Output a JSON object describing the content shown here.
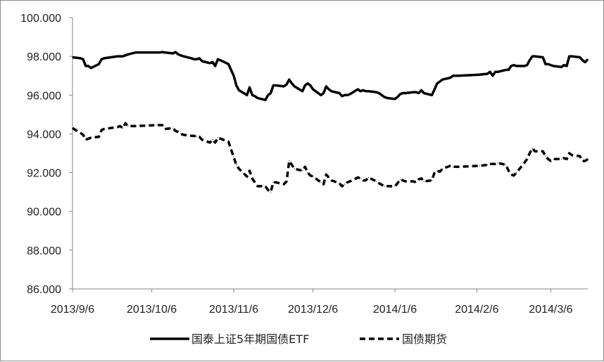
{
  "chart_data": {
    "type": "line",
    "title": "",
    "xlabel": "",
    "ylabel": "",
    "ylim": [
      86,
      100
    ],
    "grid": false,
    "legend_position": "bottom",
    "y_ticks": [
      "86.000",
      "88.000",
      "90.000",
      "92.000",
      "94.000",
      "96.000",
      "98.000",
      "100.000"
    ],
    "x_ticks": [
      "2013/9/6",
      "2013/10/6",
      "2013/11/6",
      "2013/12/6",
      "2014/1/6",
      "2014/2/6",
      "2014/3/6"
    ],
    "series": [
      {
        "name": "国泰上证5年期国债ETF",
        "style": "solid",
        "color": "#000000",
        "points": [
          [
            "2013-09-06",
            97.95
          ],
          [
            "2013-09-09",
            97.9
          ],
          [
            "2013-09-10",
            97.85
          ],
          [
            "2013-09-11",
            97.5
          ],
          [
            "2013-09-12",
            97.5
          ],
          [
            "2013-09-13",
            97.4
          ],
          [
            "2013-09-16",
            97.6
          ],
          [
            "2013-09-17",
            97.85
          ],
          [
            "2013-09-18",
            97.9
          ],
          [
            "2013-09-23",
            98.0
          ],
          [
            "2013-09-24",
            98.0
          ],
          [
            "2013-09-25",
            98.0
          ],
          [
            "2013-09-26",
            98.05
          ],
          [
            "2013-09-27",
            98.1
          ],
          [
            "2013-09-30",
            98.2
          ],
          [
            "2013-10-08",
            98.2
          ],
          [
            "2013-10-09",
            98.2
          ],
          [
            "2013-10-10",
            98.22
          ],
          [
            "2013-10-11",
            98.2
          ],
          [
            "2013-10-14",
            98.15
          ],
          [
            "2013-10-15",
            98.22
          ],
          [
            "2013-10-16",
            98.1
          ],
          [
            "2013-10-17",
            98.05
          ],
          [
            "2013-10-18",
            98.0
          ],
          [
            "2013-10-21",
            97.9
          ],
          [
            "2013-10-22",
            97.85
          ],
          [
            "2013-10-23",
            97.85
          ],
          [
            "2013-10-24",
            97.9
          ],
          [
            "2013-10-25",
            97.75
          ],
          [
            "2013-10-28",
            97.65
          ],
          [
            "2013-10-29",
            97.7
          ],
          [
            "2013-10-30",
            97.5
          ],
          [
            "2013-10-31",
            97.85
          ],
          [
            "2013-11-01",
            97.8
          ],
          [
            "2013-11-04",
            97.6
          ],
          [
            "2013-11-05",
            97.3
          ],
          [
            "2013-11-06",
            97.0
          ],
          [
            "2013-11-07",
            96.5
          ],
          [
            "2013-11-08",
            96.25
          ],
          [
            "2013-11-11",
            96.0
          ],
          [
            "2013-11-12",
            96.4
          ],
          [
            "2013-11-13",
            96.0
          ],
          [
            "2013-11-14",
            95.95
          ],
          [
            "2013-11-15",
            95.85
          ],
          [
            "2013-11-18",
            95.75
          ],
          [
            "2013-11-19",
            96.0
          ],
          [
            "2013-11-20",
            96.1
          ],
          [
            "2013-11-21",
            96.5
          ],
          [
            "2013-11-22",
            96.5
          ],
          [
            "2013-11-25",
            96.45
          ],
          [
            "2013-11-26",
            96.55
          ],
          [
            "2013-11-27",
            96.8
          ],
          [
            "2013-11-28",
            96.6
          ],
          [
            "2013-11-29",
            96.45
          ],
          [
            "2013-12-02",
            96.2
          ],
          [
            "2013-12-03",
            96.5
          ],
          [
            "2013-12-04",
            96.6
          ],
          [
            "2013-12-05",
            96.5
          ],
          [
            "2013-12-06",
            96.3
          ],
          [
            "2013-12-09",
            96.0
          ],
          [
            "2013-12-10",
            96.1
          ],
          [
            "2013-12-11",
            96.45
          ],
          [
            "2013-12-12",
            96.3
          ],
          [
            "2013-12-13",
            96.2
          ],
          [
            "2013-12-16",
            96.1
          ],
          [
            "2013-12-17",
            95.95
          ],
          [
            "2013-12-18",
            96.0
          ],
          [
            "2013-12-19",
            96.0
          ],
          [
            "2013-12-20",
            96.05
          ],
          [
            "2013-12-23",
            96.3
          ],
          [
            "2013-12-24",
            96.2
          ],
          [
            "2013-12-25",
            96.25
          ],
          [
            "2013-12-26",
            96.2
          ],
          [
            "2013-12-27",
            96.2
          ],
          [
            "2013-12-30",
            96.15
          ],
          [
            "2013-12-31",
            96.1
          ],
          [
            "2014-01-02",
            95.9
          ],
          [
            "2014-01-03",
            95.85
          ],
          [
            "2014-01-06",
            95.8
          ],
          [
            "2014-01-07",
            95.9
          ],
          [
            "2014-01-08",
            96.05
          ],
          [
            "2014-01-09",
            96.1
          ],
          [
            "2014-01-10",
            96.1
          ],
          [
            "2014-01-13",
            96.15
          ],
          [
            "2014-01-14",
            96.15
          ],
          [
            "2014-01-15",
            96.1
          ],
          [
            "2014-01-16",
            96.25
          ],
          [
            "2014-01-17",
            96.1
          ],
          [
            "2014-01-20",
            96.0
          ],
          [
            "2014-01-21",
            96.3
          ],
          [
            "2014-01-22",
            96.6
          ],
          [
            "2014-01-23",
            96.7
          ],
          [
            "2014-01-24",
            96.8
          ],
          [
            "2014-01-27",
            96.9
          ],
          [
            "2014-01-28",
            97.0
          ],
          [
            "2014-01-29",
            97.0
          ],
          [
            "2014-01-30",
            97.0
          ],
          [
            "2014-02-07",
            97.05
          ],
          [
            "2014-02-10",
            97.1
          ],
          [
            "2014-02-11",
            97.2
          ],
          [
            "2014-02-12",
            97.0
          ],
          [
            "2014-02-13",
            97.2
          ],
          [
            "2014-02-14",
            97.2
          ],
          [
            "2014-02-17",
            97.3
          ],
          [
            "2014-02-18",
            97.3
          ],
          [
            "2014-02-19",
            97.5
          ],
          [
            "2014-02-20",
            97.55
          ],
          [
            "2014-02-21",
            97.5
          ],
          [
            "2014-02-24",
            97.5
          ],
          [
            "2014-02-25",
            97.55
          ],
          [
            "2014-02-26",
            97.8
          ],
          [
            "2014-02-27",
            98.0
          ],
          [
            "2014-02-28",
            98.0
          ],
          [
            "2014-03-03",
            97.95
          ],
          [
            "2014-03-04",
            97.6
          ],
          [
            "2014-03-05",
            97.6
          ],
          [
            "2014-03-06",
            97.55
          ],
          [
            "2014-03-07",
            97.5
          ],
          [
            "2014-03-10",
            97.45
          ],
          [
            "2014-03-11",
            97.55
          ],
          [
            "2014-03-12",
            97.5
          ],
          [
            "2014-03-13",
            98.0
          ],
          [
            "2014-03-14",
            98.0
          ],
          [
            "2014-03-17",
            97.95
          ],
          [
            "2014-03-18",
            97.8
          ],
          [
            "2014-03-19",
            97.7
          ],
          [
            "2014-03-20",
            97.85
          ]
        ]
      },
      {
        "name": "国债期货",
        "style": "dashed",
        "color": "#000000",
        "points": [
          [
            "2013-09-06",
            94.3
          ],
          [
            "2013-09-09",
            94.05
          ],
          [
            "2013-09-10",
            93.95
          ],
          [
            "2013-09-11",
            93.7
          ],
          [
            "2013-09-12",
            93.75
          ],
          [
            "2013-09-13",
            93.8
          ],
          [
            "2013-09-16",
            93.85
          ],
          [
            "2013-09-17",
            94.2
          ],
          [
            "2013-09-18",
            94.25
          ],
          [
            "2013-09-23",
            94.35
          ],
          [
            "2013-09-24",
            94.4
          ],
          [
            "2013-09-25",
            94.3
          ],
          [
            "2013-09-26",
            94.55
          ],
          [
            "2013-09-27",
            94.4
          ],
          [
            "2013-09-30",
            94.4
          ],
          [
            "2013-10-08",
            94.45
          ],
          [
            "2013-10-09",
            94.45
          ],
          [
            "2013-10-10",
            94.45
          ],
          [
            "2013-10-11",
            94.25
          ],
          [
            "2013-10-14",
            94.3
          ],
          [
            "2013-10-15",
            94.15
          ],
          [
            "2013-10-16",
            94.1
          ],
          [
            "2013-10-17",
            94.0
          ],
          [
            "2013-10-18",
            93.95
          ],
          [
            "2013-10-21",
            93.9
          ],
          [
            "2013-10-22",
            93.9
          ],
          [
            "2013-10-23",
            93.85
          ],
          [
            "2013-10-24",
            93.85
          ],
          [
            "2013-10-25",
            93.7
          ],
          [
            "2013-10-28",
            93.55
          ],
          [
            "2013-10-29",
            93.7
          ],
          [
            "2013-10-30",
            93.55
          ],
          [
            "2013-10-31",
            93.8
          ],
          [
            "2013-11-01",
            93.75
          ],
          [
            "2013-11-04",
            93.6
          ],
          [
            "2013-11-05",
            93.2
          ],
          [
            "2013-11-06",
            92.8
          ],
          [
            "2013-11-07",
            92.4
          ],
          [
            "2013-11-08",
            92.2
          ],
          [
            "2013-11-11",
            91.8
          ],
          [
            "2013-11-12",
            92.1
          ],
          [
            "2013-11-13",
            91.7
          ],
          [
            "2013-11-14",
            91.5
          ],
          [
            "2013-11-15",
            91.3
          ],
          [
            "2013-11-18",
            91.3
          ],
          [
            "2013-11-19",
            91.1
          ],
          [
            "2013-11-20",
            91.0
          ],
          [
            "2013-11-21",
            91.5
          ],
          [
            "2013-11-22",
            91.5
          ],
          [
            "2013-11-25",
            91.4
          ],
          [
            "2013-11-26",
            91.55
          ],
          [
            "2013-11-27",
            92.6
          ],
          [
            "2013-11-28",
            92.4
          ],
          [
            "2013-11-29",
            92.2
          ],
          [
            "2013-12-02",
            92.1
          ],
          [
            "2013-12-03",
            92.3
          ],
          [
            "2013-12-04",
            92.0
          ],
          [
            "2013-12-05",
            91.85
          ],
          [
            "2013-12-06",
            91.8
          ],
          [
            "2013-12-09",
            91.5
          ],
          [
            "2013-12-10",
            91.4
          ],
          [
            "2013-12-11",
            91.9
          ],
          [
            "2013-12-12",
            91.75
          ],
          [
            "2013-12-13",
            91.6
          ],
          [
            "2013-12-16",
            91.45
          ],
          [
            "2013-12-17",
            91.3
          ],
          [
            "2013-12-18",
            91.4
          ],
          [
            "2013-12-19",
            91.5
          ],
          [
            "2013-12-20",
            91.55
          ],
          [
            "2013-12-23",
            91.75
          ],
          [
            "2013-12-24",
            91.7
          ],
          [
            "2013-12-25",
            91.6
          ],
          [
            "2013-12-26",
            91.6
          ],
          [
            "2013-12-27",
            91.75
          ],
          [
            "2013-12-30",
            91.55
          ],
          [
            "2013-12-31",
            91.45
          ],
          [
            "2014-01-02",
            91.3
          ],
          [
            "2014-01-03",
            91.3
          ],
          [
            "2014-01-06",
            91.3
          ],
          [
            "2014-01-07",
            91.45
          ],
          [
            "2014-01-08",
            91.65
          ],
          [
            "2014-01-09",
            91.6
          ],
          [
            "2014-01-10",
            91.55
          ],
          [
            "2014-01-13",
            91.55
          ],
          [
            "2014-01-14",
            91.5
          ],
          [
            "2014-01-15",
            91.65
          ],
          [
            "2014-01-16",
            91.7
          ],
          [
            "2014-01-17",
            91.55
          ],
          [
            "2014-01-20",
            91.6
          ],
          [
            "2014-01-21",
            92.0
          ],
          [
            "2014-01-22",
            92.1
          ],
          [
            "2014-01-23",
            92.05
          ],
          [
            "2014-01-24",
            92.2
          ],
          [
            "2014-01-27",
            92.35
          ],
          [
            "2014-01-28",
            92.3
          ],
          [
            "2014-01-29",
            92.3
          ],
          [
            "2014-01-30",
            92.3
          ],
          [
            "2014-02-07",
            92.35
          ],
          [
            "2014-02-10",
            92.4
          ],
          [
            "2014-02-11",
            92.45
          ],
          [
            "2014-02-12",
            92.45
          ],
          [
            "2014-02-13",
            92.45
          ],
          [
            "2014-02-14",
            92.5
          ],
          [
            "2014-02-17",
            92.4
          ],
          [
            "2014-02-18",
            92.1
          ],
          [
            "2014-02-19",
            91.9
          ],
          [
            "2014-02-20",
            91.85
          ],
          [
            "2014-02-21",
            92.0
          ],
          [
            "2014-02-24",
            92.5
          ],
          [
            "2014-02-25",
            92.7
          ],
          [
            "2014-02-26",
            93.0
          ],
          [
            "2014-02-27",
            93.25
          ],
          [
            "2014-02-28",
            93.1
          ],
          [
            "2014-03-03",
            93.1
          ],
          [
            "2014-03-04",
            92.85
          ],
          [
            "2014-03-05",
            92.7
          ],
          [
            "2014-03-06",
            92.6
          ],
          [
            "2014-03-07",
            92.7
          ],
          [
            "2014-03-10",
            92.7
          ],
          [
            "2014-03-11",
            92.75
          ],
          [
            "2014-03-12",
            92.7
          ],
          [
            "2014-03-13",
            93.0
          ],
          [
            "2014-03-14",
            92.9
          ],
          [
            "2014-03-17",
            92.85
          ],
          [
            "2014-03-18",
            92.6
          ],
          [
            "2014-03-19",
            92.6
          ],
          [
            "2014-03-20",
            92.7
          ]
        ]
      }
    ]
  }
}
